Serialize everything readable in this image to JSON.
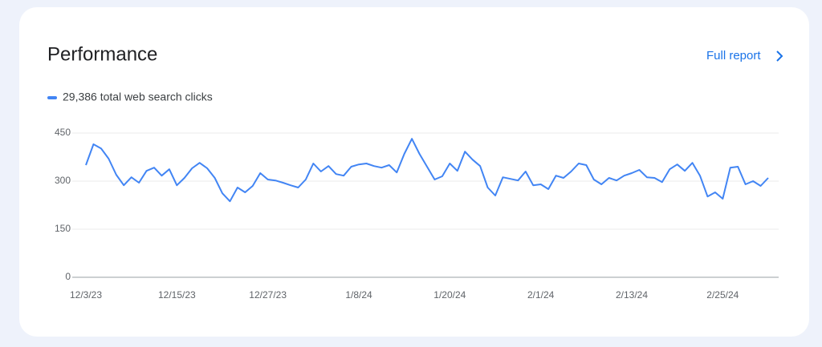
{
  "card": {
    "title": "Performance",
    "link": "Full report"
  },
  "chart_data": {
    "type": "line",
    "categories": [
      "12/3/23",
      null,
      null,
      null,
      null,
      null,
      null,
      null,
      null,
      null,
      null,
      null,
      "12/15/23",
      null,
      null,
      null,
      null,
      null,
      null,
      null,
      null,
      null,
      null,
      null,
      "12/27/23",
      null,
      null,
      null,
      null,
      null,
      null,
      null,
      null,
      null,
      null,
      null,
      "1/8/24",
      null,
      null,
      null,
      null,
      null,
      null,
      null,
      null,
      null,
      null,
      null,
      "1/20/24",
      null,
      null,
      null,
      null,
      null,
      null,
      null,
      null,
      null,
      null,
      null,
      "2/1/24",
      null,
      null,
      null,
      null,
      null,
      null,
      null,
      null,
      null,
      null,
      null,
      "2/13/24",
      null,
      null,
      null,
      null,
      null,
      null,
      null,
      null,
      null,
      null,
      null,
      "2/25/24",
      null,
      null,
      null,
      null,
      null,
      null
    ],
    "series": [
      {
        "name": "29,386 total web search clicks",
        "color": "#4285f4",
        "values": [
          350,
          415,
          402,
          370,
          320,
          287,
          312,
          295,
          332,
          342,
          317,
          337,
          287,
          310,
          340,
          357,
          340,
          310,
          262,
          237,
          280,
          265,
          285,
          325,
          305,
          302,
          295,
          287,
          280,
          305,
          355,
          330,
          347,
          322,
          317,
          345,
          352,
          355,
          347,
          342,
          350,
          327,
          385,
          432,
          385,
          345,
          305,
          315,
          355,
          332,
          392,
          367,
          347,
          280,
          255,
          312,
          307,
          302,
          330,
          287,
          290,
          275,
          317,
          310,
          330,
          355,
          350,
          305,
          290,
          310,
          302,
          317,
          325,
          335,
          312,
          310,
          297,
          337,
          352,
          332,
          357,
          317,
          252,
          265,
          245,
          342,
          345,
          290,
          300,
          285,
          310
        ]
      }
    ],
    "ylim": [
      0,
      450
    ],
    "yticks": [
      0,
      150,
      300,
      450
    ],
    "grid": true
  }
}
